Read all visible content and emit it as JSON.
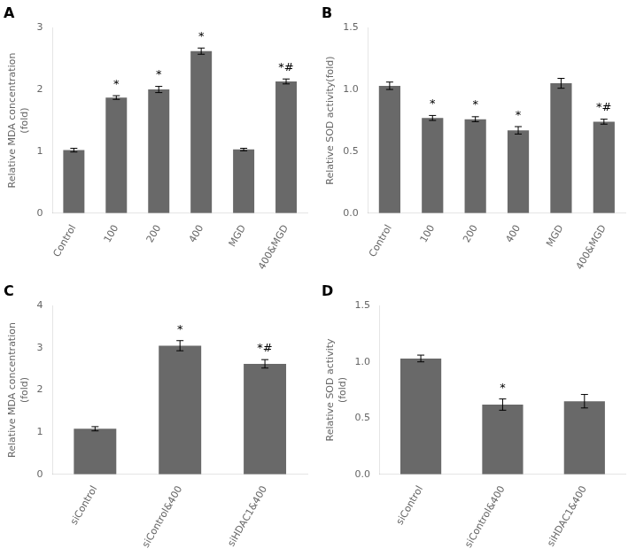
{
  "chart_data": [
    {
      "type": "bar",
      "title": "A",
      "categories": [
        "Control",
        "100",
        "200",
        "400",
        "MGD",
        "400&MGD"
      ],
      "values": [
        1.02,
        1.87,
        2.0,
        2.62,
        1.03,
        2.13
      ],
      "errors": [
        0.03,
        0.03,
        0.05,
        0.05,
        0.02,
        0.04
      ],
      "ylabel": "Relative MDA concentration\n(fold)",
      "ylim": [
        0,
        3.0
      ],
      "yticks": [
        0,
        1,
        2,
        3
      ],
      "annotations": [
        {
          "category": "100",
          "text": "*"
        },
        {
          "category": "200",
          "text": "*"
        },
        {
          "category": "400",
          "text": "*"
        },
        {
          "category": "400&MGD",
          "text": "*#"
        }
      ],
      "color": "#696969",
      "grid": false
    },
    {
      "type": "bar",
      "title": "B",
      "categories": [
        "Control",
        "100",
        "200",
        "400",
        "MGD",
        "400&MGD"
      ],
      "values": [
        1.03,
        0.77,
        0.76,
        0.67,
        1.05,
        0.74
      ],
      "errors": [
        0.03,
        0.02,
        0.02,
        0.03,
        0.04,
        0.02
      ],
      "ylabel": "Relative SOD activity(fold)",
      "ylim": [
        0,
        1.5
      ],
      "yticks": [
        {
          "value": 0,
          "label": "0.0"
        },
        0.5,
        {
          "value": 1,
          "label": "1.0"
        },
        1.5
      ],
      "annotations": [
        {
          "category": "100",
          "text": "*"
        },
        {
          "category": "200",
          "text": "*"
        },
        {
          "category": "400",
          "text": "*"
        },
        {
          "category": "400&MGD",
          "text": "*#"
        }
      ],
      "color": "#696969",
      "grid": false
    },
    {
      "type": "bar",
      "title": "C",
      "categories": [
        "siControl",
        "siControl&400",
        "siHDAC1&400"
      ],
      "values": [
        1.08,
        3.05,
        2.62
      ],
      "errors": [
        0.05,
        0.12,
        0.1
      ],
      "ylabel": "Relative MDA concentration\n(fold)",
      "ylim": [
        0,
        4.0
      ],
      "yticks": [
        0,
        1,
        2,
        3,
        4
      ],
      "annotations": [
        {
          "category": "siControl&400",
          "text": "*"
        },
        {
          "category": "siHDAC1&400",
          "text": "*#"
        }
      ],
      "color": "#696969",
      "grid": false
    },
    {
      "type": "bar",
      "title": "D",
      "categories": [
        "siControl",
        "siControl&400",
        "siHDAC1&400"
      ],
      "values": [
        1.03,
        0.62,
        0.65
      ],
      "errors": [
        0.03,
        0.05,
        0.06
      ],
      "ylabel": "Relative SOD activity\n(fold)",
      "ylim": [
        0,
        1.5
      ],
      "yticks": [
        {
          "value": 0,
          "label": "0.0"
        },
        0.5,
        {
          "value": 1,
          "label": "1.0"
        },
        1.5
      ],
      "annotations": [
        {
          "category": "siControl&400",
          "text": "*"
        },
        {
          "category": "siControl&400",
          "text": "*"
        }
      ],
      "color": "#696969",
      "grid": false
    }
  ]
}
